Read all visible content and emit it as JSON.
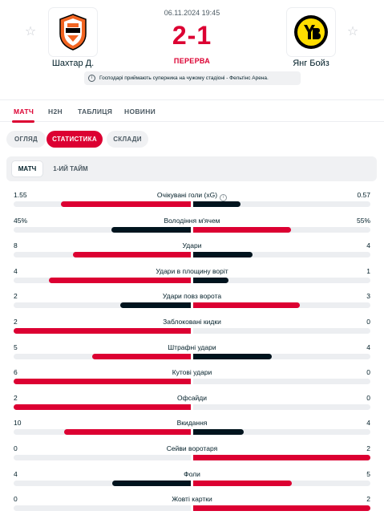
{
  "match": {
    "datetime": "06.11.2024 19:45",
    "score_home": "2",
    "score_sep": "-",
    "score_away": "1",
    "status": "ПЕРЕРВА",
    "info": "Господарі приймають суперника на чужому стадіоні - Фельтінс Арена."
  },
  "home": {
    "name": "Шахтар Д.",
    "logo_icon": "shakhtar-crest"
  },
  "away": {
    "name": "Янг Бойз",
    "logo_icon": "young-boys-crest"
  },
  "tabs": [
    {
      "label": "МАТЧ",
      "active": true
    },
    {
      "label": "H2H",
      "active": false
    },
    {
      "label": "ТАБЛИЦЯ",
      "active": false
    },
    {
      "label": "НОВИНИ",
      "active": false
    }
  ],
  "subtabs": [
    {
      "label": "ОГЛЯД",
      "active": false
    },
    {
      "label": "СТАТИСТИКА",
      "active": true
    },
    {
      "label": "СКЛАДИ",
      "active": false
    }
  ],
  "periods": [
    {
      "label": "МАТЧ",
      "active": true
    },
    {
      "label": "1-ИЙ ТАЙМ",
      "active": false
    }
  ],
  "colors": {
    "accent": "#dc0032",
    "dark": "#00141e",
    "track": "#eceef1"
  },
  "stats": [
    {
      "label": "Очікувані голи (xG)",
      "home": "1.55",
      "away": "0.57",
      "home_val": 1.55,
      "away_val": 0.57,
      "info_icon": true
    },
    {
      "label": "Володіння м'ячем",
      "home": "45%",
      "away": "55%",
      "home_val": 45,
      "away_val": 55
    },
    {
      "label": "Удари",
      "home": "8",
      "away": "4",
      "home_val": 8,
      "away_val": 4
    },
    {
      "label": "Удари в площину воріт",
      "home": "4",
      "away": "1",
      "home_val": 4,
      "away_val": 1
    },
    {
      "label": "Удари повз ворота",
      "home": "2",
      "away": "3",
      "home_val": 2,
      "away_val": 3
    },
    {
      "label": "Заблоковані кидки",
      "home": "2",
      "away": "0",
      "home_val": 2,
      "away_val": 0
    },
    {
      "label": "Штрафні удари",
      "home": "5",
      "away": "4",
      "home_val": 5,
      "away_val": 4
    },
    {
      "label": "Кутові удари",
      "home": "6",
      "away": "0",
      "home_val": 6,
      "away_val": 0
    },
    {
      "label": "Офсайди",
      "home": "2",
      "away": "0",
      "home_val": 2,
      "away_val": 0
    },
    {
      "label": "Вкидання",
      "home": "10",
      "away": "4",
      "home_val": 10,
      "away_val": 4
    },
    {
      "label": "Сейви воротаря",
      "home": "0",
      "away": "2",
      "home_val": 0,
      "away_val": 2
    },
    {
      "label": "Фоли",
      "home": "4",
      "away": "5",
      "home_val": 4,
      "away_val": 5
    },
    {
      "label": "Жовті картки",
      "home": "0",
      "away": "2",
      "home_val": 0,
      "away_val": 2
    }
  ]
}
